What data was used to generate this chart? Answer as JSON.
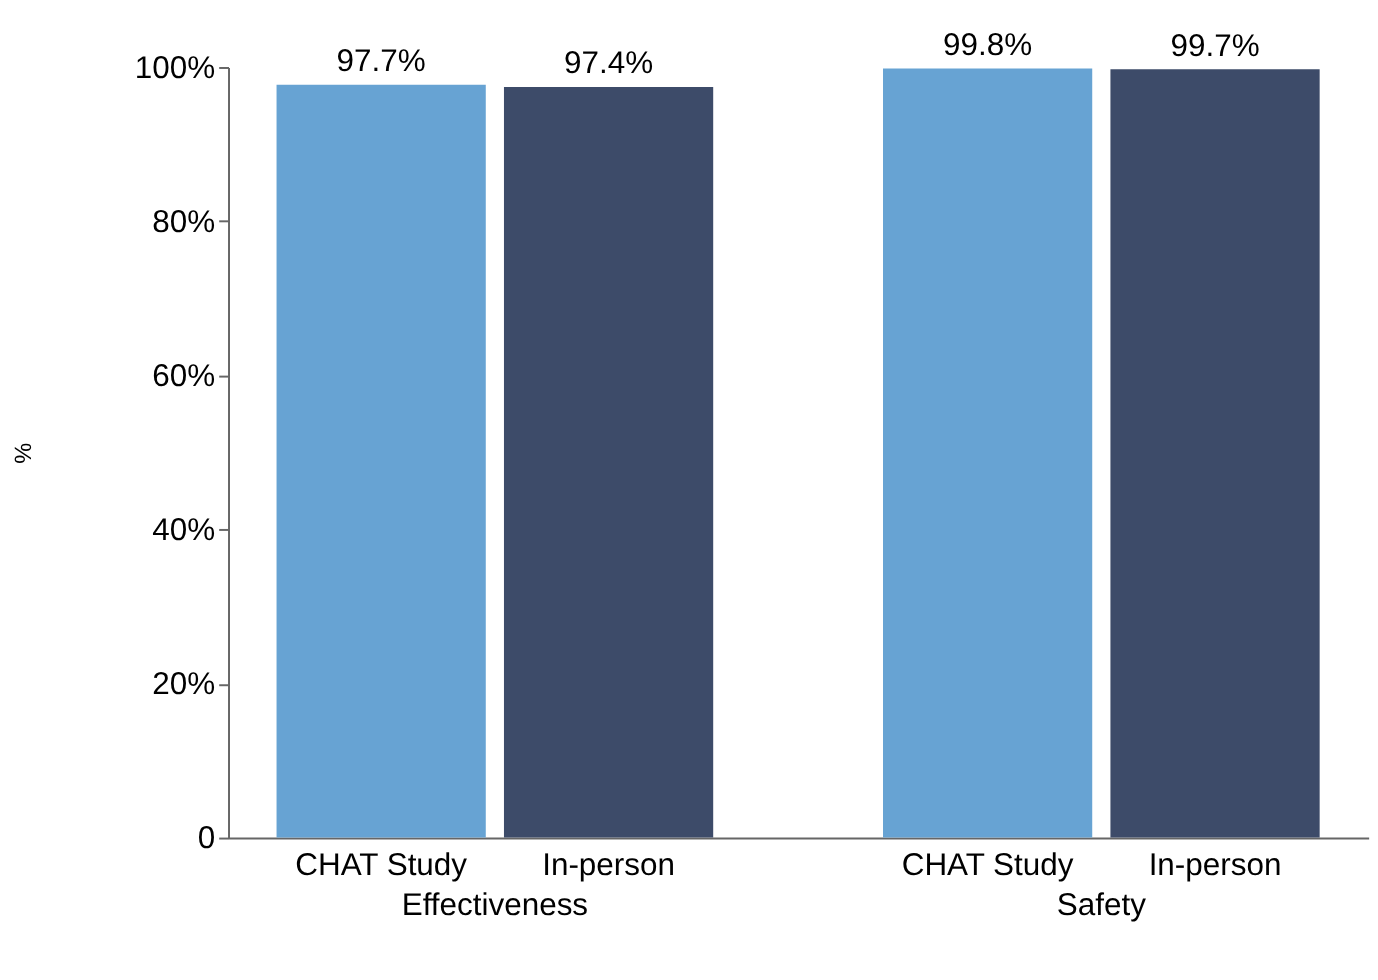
{
  "chart_data": {
    "type": "bar",
    "ylabel": "%",
    "categories": [
      "Effectiveness",
      "Safety"
    ],
    "series": [
      {
        "name": "CHAT Study",
        "color": "#67a3d3",
        "values": [
          97.7,
          99.8
        ],
        "value_labels": [
          "97.7%",
          "99.8%"
        ]
      },
      {
        "name": "In-person",
        "color": "#3d4b69",
        "values": [
          97.4,
          99.7
        ],
        "value_labels": [
          "97.4%",
          "99.7%"
        ]
      }
    ],
    "ylim": [
      0,
      100
    ],
    "yticks": [
      0,
      {
        "value": 20,
        "label": "20%"
      },
      {
        "value": 40,
        "label": "40%"
      },
      {
        "value": 60,
        "label": "60%"
      },
      {
        "value": 80,
        "label": "80%"
      },
      {
        "value": 100,
        "label": "100%"
      }
    ],
    "grid": false,
    "legend": false
  }
}
